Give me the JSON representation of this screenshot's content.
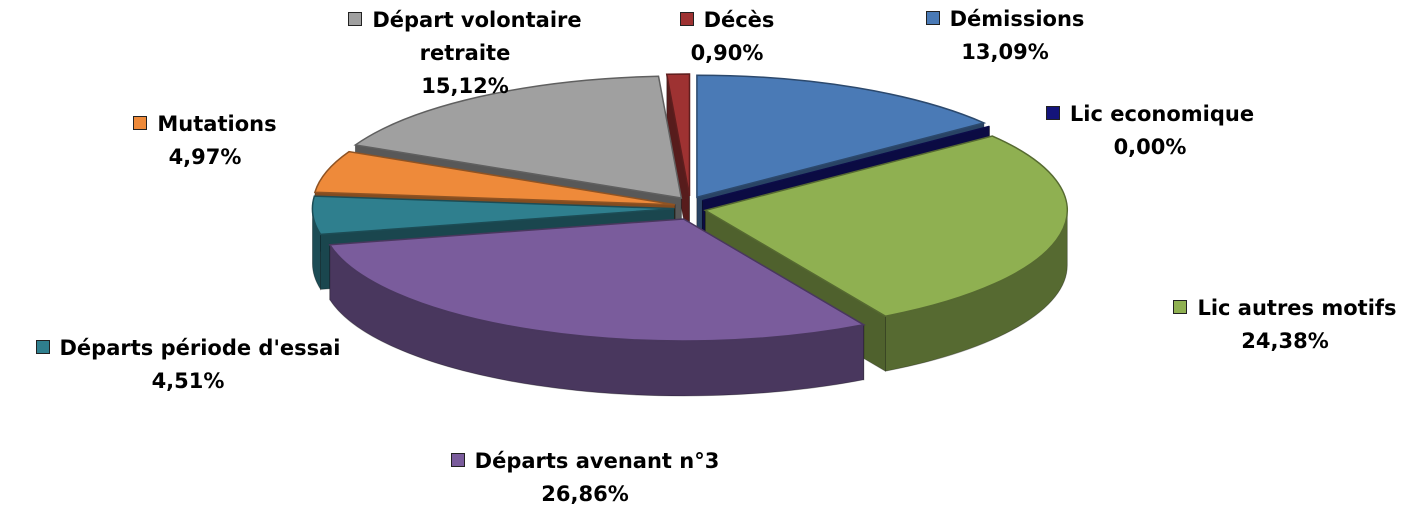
{
  "chart_data": {
    "type": "pie",
    "categories": [
      "Démissions",
      "Lic economique",
      "Lic autres motifs",
      "Départs avenant n°3",
      "Départs période d'essai",
      "Mutations",
      "Départ volontaire retraite",
      "Décès"
    ],
    "values": [
      13.09,
      0.0,
      24.38,
      26.86,
      4.51,
      4.97,
      15.12,
      0.9
    ],
    "value_labels": [
      "13,09%",
      "0,00%",
      "24,38%",
      "26,86%",
      "4,51%",
      "4,97%",
      "15,12%",
      "0,90%"
    ],
    "colors": [
      "#4a7ab6",
      "#14147a",
      "#8fb051",
      "#7a5c9c",
      "#2f7f8e",
      "#ee8a3a",
      "#a0a0a0",
      "#9e3232"
    ]
  }
}
